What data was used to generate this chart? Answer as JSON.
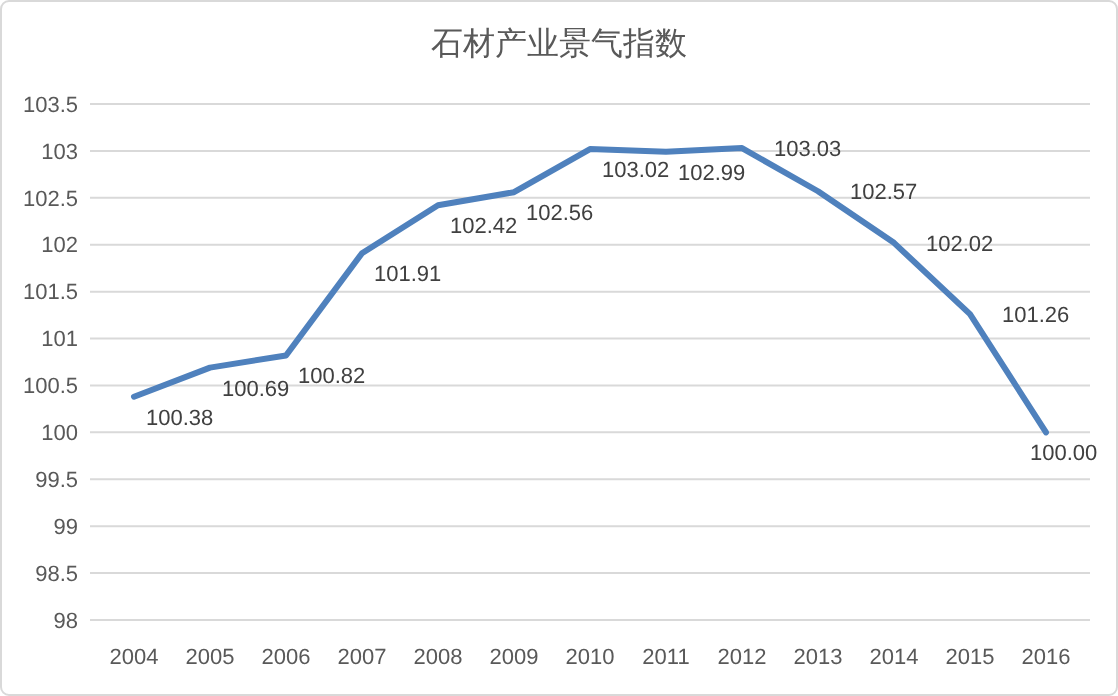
{
  "chart_data": {
    "type": "line",
    "title": "石材产业景气指数",
    "categories": [
      "2004",
      "2005",
      "2006",
      "2007",
      "2008",
      "2009",
      "2010",
      "2011",
      "2012",
      "2013",
      "2014",
      "2015",
      "2016"
    ],
    "series": [
      {
        "color": "#4f81bd",
        "values": [
          100.38,
          100.69,
          100.82,
          101.91,
          102.42,
          102.56,
          103.02,
          102.99,
          103.03,
          102.57,
          102.02,
          101.26,
          100.0
        ],
        "value_labels": [
          "100.38",
          "100.69",
          "100.82",
          "101.91",
          "102.42",
          "102.56",
          "103.02",
          "102.99",
          "103.03",
          "102.57",
          "102.02",
          "101.26",
          "100.00"
        ]
      }
    ],
    "ylim": [
      98,
      103.5
    ],
    "yticks": [
      98,
      98.5,
      99,
      99.5,
      100,
      100.5,
      101,
      101.5,
      102,
      102.5,
      103,
      103.5
    ],
    "grid": "y",
    "marker": "none",
    "line_style": "solid"
  }
}
